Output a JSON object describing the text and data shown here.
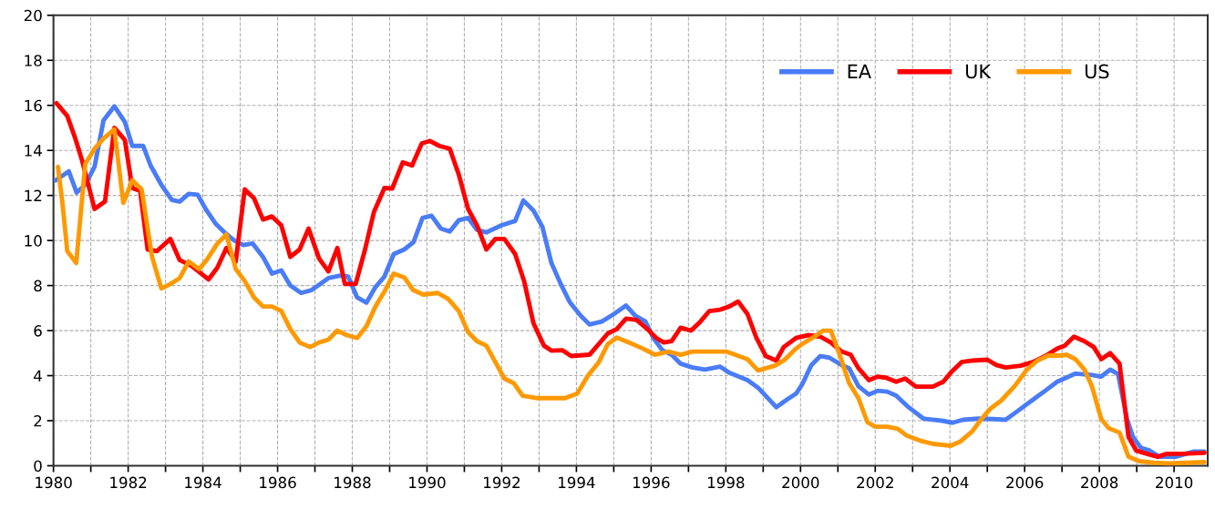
{
  "chart_data": {
    "type": "line",
    "xlim": [
      1980,
      2010.9
    ],
    "ylim": [
      0,
      20
    ],
    "xticks": [
      {
        "value": 1980,
        "label": "1980"
      },
      {
        "value": 1981,
        "label": null
      },
      {
        "value": 1982,
        "label": "1982"
      },
      {
        "value": 1983,
        "label": null
      },
      {
        "value": 1984,
        "label": "1984"
      },
      {
        "value": 1985,
        "label": null
      },
      {
        "value": 1986,
        "label": "1986"
      },
      {
        "value": 1987,
        "label": null
      },
      {
        "value": 1988,
        "label": "1988"
      },
      {
        "value": 1989,
        "label": null
      },
      {
        "value": 1990,
        "label": "1990"
      },
      {
        "value": 1991,
        "label": null
      },
      {
        "value": 1992,
        "label": "1992"
      },
      {
        "value": 1993,
        "label": null
      },
      {
        "value": 1994,
        "label": "1994"
      },
      {
        "value": 1995,
        "label": null
      },
      {
        "value": 1996,
        "label": "1996"
      },
      {
        "value": 1997,
        "label": null
      },
      {
        "value": 1998,
        "label": "1998"
      },
      {
        "value": 1999,
        "label": null
      },
      {
        "value": 2000,
        "label": "2000"
      },
      {
        "value": 2001,
        "label": null
      },
      {
        "value": 2002,
        "label": "2002"
      },
      {
        "value": 2003,
        "label": null
      },
      {
        "value": 2004,
        "label": "2004"
      },
      {
        "value": 2005,
        "label": null
      },
      {
        "value": 2006,
        "label": "2006"
      },
      {
        "value": 2007,
        "label": null
      },
      {
        "value": 2008,
        "label": "2008"
      },
      {
        "value": 2009,
        "label": null
      },
      {
        "value": 2010,
        "label": "2010"
      }
    ],
    "yticks": [
      0,
      2,
      4,
      6,
      8,
      10,
      12,
      14,
      16,
      18,
      20
    ],
    "grid": true,
    "legend": "top right",
    "marker": "none",
    "line_style": "solid",
    "series": [
      {
        "name": "EA",
        "color": "#4a7cf7",
        "x": [
          1980.06,
          1980.41,
          1980.62,
          1980.85,
          1981.1,
          1981.34,
          1981.63,
          1981.91,
          1982.11,
          1982.4,
          1982.6,
          1982.89,
          1983.17,
          1983.38,
          1983.62,
          1983.86,
          1984.1,
          1984.35,
          1984.6,
          1984.84,
          1985.08,
          1985.33,
          1985.61,
          1985.85,
          1986.1,
          1986.34,
          1986.63,
          1986.91,
          1987.36,
          1987.68,
          1987.89,
          1988.13,
          1988.38,
          1988.62,
          1988.86,
          1989.11,
          1989.39,
          1989.64,
          1989.88,
          1990.12,
          1990.37,
          1990.61,
          1990.85,
          1991.1,
          1991.34,
          1991.59,
          1991.99,
          1992.36,
          1992.58,
          1992.85,
          1993.09,
          1993.33,
          1993.58,
          1993.82,
          1994.11,
          1994.35,
          1994.68,
          1995.0,
          1995.33,
          1995.57,
          1995.85,
          1996.06,
          1996.3,
          1996.55,
          1996.79,
          1997.11,
          1997.44,
          1997.85,
          1998.09,
          1998.58,
          1998.86,
          1999.35,
          1999.63,
          1999.88,
          2000.04,
          2000.29,
          2000.53,
          2000.77,
          2001.1,
          2001.3,
          2001.55,
          2001.83,
          2002.07,
          2002.32,
          2002.56,
          2002.89,
          2003.29,
          2003.78,
          2004.07,
          2004.35,
          2004.76,
          2005.16,
          2005.49,
          2005.73,
          2006.22,
          2006.55,
          2006.87,
          2007.36,
          2007.77,
          2008.05,
          2008.29,
          2008.5,
          2008.74,
          2008.9,
          2009.11,
          2009.35,
          2009.6,
          2010.04,
          2010.53,
          2010.81
        ],
        "values": [
          12.67,
          13.07,
          12.13,
          12.47,
          13.27,
          15.33,
          15.96,
          15.27,
          14.2,
          14.2,
          13.33,
          12.47,
          11.8,
          11.73,
          12.07,
          12.03,
          11.33,
          10.73,
          10.33,
          10.0,
          9.8,
          9.87,
          9.27,
          8.53,
          8.67,
          8.0,
          7.67,
          7.8,
          8.33,
          8.44,
          8.4,
          7.47,
          7.24,
          7.93,
          8.4,
          9.4,
          9.6,
          9.93,
          11.0,
          11.1,
          10.53,
          10.4,
          10.9,
          11.0,
          10.47,
          10.36,
          10.67,
          10.87,
          11.78,
          11.33,
          10.6,
          9.0,
          8.07,
          7.27,
          6.67,
          6.27,
          6.4,
          6.73,
          7.11,
          6.67,
          6.4,
          5.67,
          5.13,
          4.93,
          4.53,
          4.36,
          4.27,
          4.4,
          4.13,
          3.8,
          3.47,
          2.6,
          2.93,
          3.2,
          3.6,
          4.47,
          4.87,
          4.8,
          4.47,
          4.33,
          3.53,
          3.16,
          3.33,
          3.29,
          3.11,
          2.6,
          2.09,
          2.0,
          1.91,
          2.04,
          2.09,
          2.07,
          2.04,
          2.33,
          2.93,
          3.33,
          3.73,
          4.09,
          4.04,
          3.96,
          4.27,
          4.07,
          2.07,
          1.27,
          0.8,
          0.67,
          0.4,
          0.4,
          0.63,
          0.63
        ]
      },
      {
        "name": "UK",
        "color": "#ff0000",
        "x": [
          1980.08,
          1980.37,
          1980.57,
          1980.77,
          1981.1,
          1981.38,
          1981.63,
          1981.91,
          1982.11,
          1982.32,
          1982.52,
          1982.77,
          1983.13,
          1983.38,
          1983.7,
          1984.15,
          1984.39,
          1984.63,
          1984.88,
          1985.12,
          1985.37,
          1985.61,
          1985.85,
          1986.1,
          1986.34,
          1986.59,
          1986.83,
          1987.11,
          1987.36,
          1987.6,
          1987.8,
          1988.09,
          1988.33,
          1988.58,
          1988.86,
          1989.07,
          1989.35,
          1989.6,
          1989.86,
          1990.08,
          1990.33,
          1990.61,
          1990.85,
          1991.1,
          1991.34,
          1991.59,
          1991.83,
          1992.07,
          1992.36,
          1992.6,
          1992.85,
          1993.13,
          1993.33,
          1993.62,
          1993.86,
          1994.35,
          1994.84,
          1995.08,
          1995.33,
          1995.61,
          1995.9,
          1996.14,
          1996.34,
          1996.55,
          1996.79,
          1997.07,
          1997.32,
          1997.56,
          1997.85,
          1998.09,
          1998.33,
          1998.58,
          1998.82,
          1999.07,
          1999.35,
          1999.55,
          1999.88,
          2000.2,
          2000.53,
          2000.81,
          2001.1,
          2001.34,
          2001.55,
          2001.83,
          2002.07,
          2002.28,
          2002.56,
          2002.8,
          2003.09,
          2003.54,
          2003.82,
          2004.02,
          2004.31,
          2004.6,
          2005.0,
          2005.24,
          2005.49,
          2005.89,
          2006.22,
          2006.55,
          2006.87,
          2007.07,
          2007.32,
          2007.6,
          2007.85,
          2008.05,
          2008.29,
          2008.54,
          2008.78,
          2008.99,
          2009.27,
          2009.56,
          2009.8,
          2010.2,
          2010.81
        ],
        "values": [
          16.1,
          15.53,
          14.6,
          13.53,
          11.4,
          11.73,
          15.0,
          14.47,
          12.33,
          12.2,
          9.6,
          9.53,
          10.07,
          9.13,
          8.87,
          8.27,
          8.8,
          9.67,
          9.07,
          12.27,
          11.87,
          10.93,
          11.07,
          10.67,
          9.27,
          9.6,
          10.53,
          9.2,
          8.63,
          9.67,
          8.07,
          8.07,
          9.53,
          11.27,
          12.33,
          12.31,
          13.47,
          13.33,
          14.31,
          14.42,
          14.2,
          14.07,
          12.93,
          11.4,
          10.67,
          9.6,
          10.07,
          10.07,
          9.4,
          8.2,
          6.33,
          5.33,
          5.11,
          5.13,
          4.87,
          4.93,
          5.87,
          6.07,
          6.53,
          6.47,
          6.07,
          5.67,
          5.47,
          5.53,
          6.13,
          6.0,
          6.4,
          6.87,
          6.93,
          7.07,
          7.29,
          6.73,
          5.67,
          4.87,
          4.67,
          5.27,
          5.67,
          5.8,
          5.73,
          5.47,
          5.07,
          4.93,
          4.33,
          3.8,
          3.96,
          3.91,
          3.73,
          3.87,
          3.51,
          3.51,
          3.73,
          4.13,
          4.6,
          4.67,
          4.71,
          4.47,
          4.36,
          4.44,
          4.6,
          4.87,
          5.2,
          5.33,
          5.73,
          5.53,
          5.27,
          4.73,
          5.0,
          4.53,
          1.27,
          0.67,
          0.53,
          0.4,
          0.53,
          0.53,
          0.57
        ]
      },
      {
        "name": "US",
        "color": "#ff9900",
        "x": [
          1980.12,
          1980.24,
          1980.37,
          1980.61,
          1980.85,
          1981.1,
          1981.34,
          1981.63,
          1981.87,
          1982.11,
          1982.36,
          1982.64,
          1982.89,
          1983.13,
          1983.38,
          1983.62,
          1983.9,
          1984.1,
          1984.39,
          1984.63,
          1984.88,
          1985.12,
          1985.37,
          1985.61,
          1985.85,
          1986.1,
          1986.34,
          1986.59,
          1986.87,
          1987.11,
          1987.36,
          1987.6,
          1987.85,
          1988.13,
          1988.38,
          1988.62,
          1988.86,
          1989.11,
          1989.39,
          1989.63,
          1989.9,
          1990.29,
          1990.57,
          1990.85,
          1991.1,
          1991.34,
          1991.59,
          1991.83,
          1992.07,
          1992.32,
          1992.56,
          1992.97,
          1993.7,
          1994.02,
          1994.31,
          1994.6,
          1994.84,
          1995.08,
          1995.41,
          1995.73,
          1996.1,
          1996.46,
          1996.79,
          1997.11,
          1998.01,
          1998.58,
          1998.86,
          1999.31,
          1999.55,
          1999.88,
          2000.04,
          2000.37,
          2000.61,
          2000.81,
          2001.06,
          2001.3,
          2001.55,
          2001.79,
          2002.0,
          2002.32,
          2002.6,
          2002.85,
          2003.21,
          2003.54,
          2004.02,
          2004.27,
          2004.6,
          2004.84,
          2005.08,
          2005.37,
          2005.73,
          2006.06,
          2006.34,
          2006.63,
          2006.95,
          2007.12,
          2007.36,
          2007.6,
          2007.8,
          2008.05,
          2008.25,
          2008.54,
          2008.78,
          2009.06,
          2009.47,
          2009.88,
          2010.81
        ],
        "values": [
          13.27,
          11.67,
          9.53,
          9.0,
          13.4,
          14.07,
          14.53,
          14.93,
          11.67,
          12.67,
          12.27,
          9.27,
          7.87,
          8.07,
          8.33,
          9.07,
          8.73,
          9.13,
          9.87,
          10.27,
          8.73,
          8.2,
          7.47,
          7.07,
          7.07,
          6.87,
          6.07,
          5.47,
          5.27,
          5.47,
          5.6,
          6.0,
          5.8,
          5.67,
          6.2,
          7.07,
          7.73,
          8.53,
          8.36,
          7.8,
          7.6,
          7.67,
          7.4,
          6.87,
          5.93,
          5.53,
          5.33,
          4.6,
          3.87,
          3.67,
          3.11,
          3.0,
          3.0,
          3.2,
          4.0,
          4.6,
          5.4,
          5.69,
          5.47,
          5.24,
          4.93,
          5.07,
          4.93,
          5.07,
          5.07,
          4.73,
          4.23,
          4.44,
          4.67,
          5.2,
          5.4,
          5.73,
          6.0,
          6.0,
          4.87,
          3.67,
          3.0,
          1.93,
          1.73,
          1.73,
          1.64,
          1.33,
          1.11,
          0.97,
          0.89,
          1.07,
          1.53,
          2.07,
          2.53,
          2.89,
          3.53,
          4.27,
          4.67,
          4.89,
          4.89,
          4.93,
          4.73,
          4.27,
          3.53,
          2.07,
          1.67,
          1.47,
          0.4,
          0.2,
          0.13,
          0.1,
          0.16
        ]
      }
    ]
  }
}
